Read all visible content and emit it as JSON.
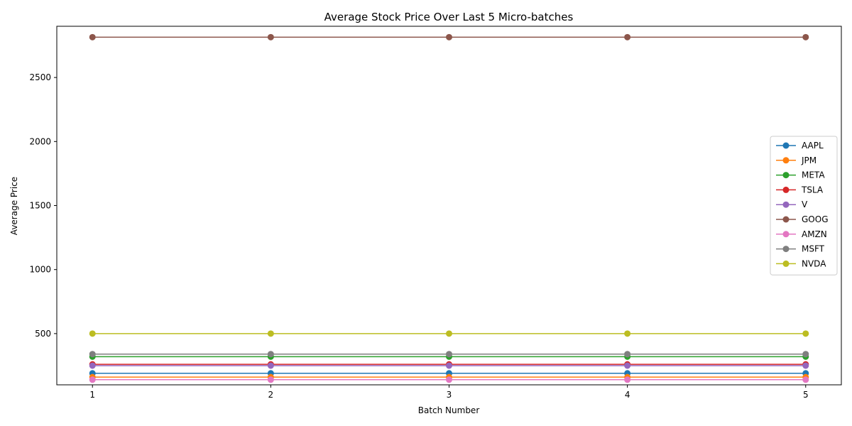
{
  "chart_data": {
    "type": "line",
    "title": "Average Stock Price Over Last 5 Micro-batches",
    "xlabel": "Batch Number",
    "ylabel": "Average Price",
    "x": [
      1,
      2,
      3,
      4,
      5
    ],
    "xticks": [
      "1",
      "2",
      "3",
      "4",
      "5"
    ],
    "yticks": [
      500,
      1000,
      1500,
      2000,
      2500
    ],
    "ylim": [
      100,
      2900
    ],
    "grid": false,
    "legend_position": "center-right",
    "series": [
      {
        "name": "AAPL",
        "color": "#1f77b4",
        "values": [
          190,
          190,
          190,
          190,
          190
        ]
      },
      {
        "name": "JPM",
        "color": "#ff7f0e",
        "values": [
          160,
          160,
          160,
          160,
          160
        ]
      },
      {
        "name": "META",
        "color": "#2ca02c",
        "values": [
          320,
          320,
          320,
          320,
          320
        ]
      },
      {
        "name": "TSLA",
        "color": "#d62728",
        "values": [
          260,
          260,
          260,
          260,
          260
        ]
      },
      {
        "name": "V",
        "color": "#9467bd",
        "values": [
          250,
          250,
          250,
          250,
          250
        ]
      },
      {
        "name": "GOOG",
        "color": "#8c564b",
        "values": [
          2815,
          2815,
          2815,
          2815,
          2815
        ]
      },
      {
        "name": "AMZN",
        "color": "#e377c2",
        "values": [
          140,
          140,
          140,
          140,
          140
        ]
      },
      {
        "name": "MSFT",
        "color": "#7f7f7f",
        "values": [
          340,
          340,
          340,
          340,
          340
        ]
      },
      {
        "name": "NVDA",
        "color": "#bcbd22",
        "values": [
          500,
          500,
          500,
          500,
          500
        ]
      }
    ]
  }
}
